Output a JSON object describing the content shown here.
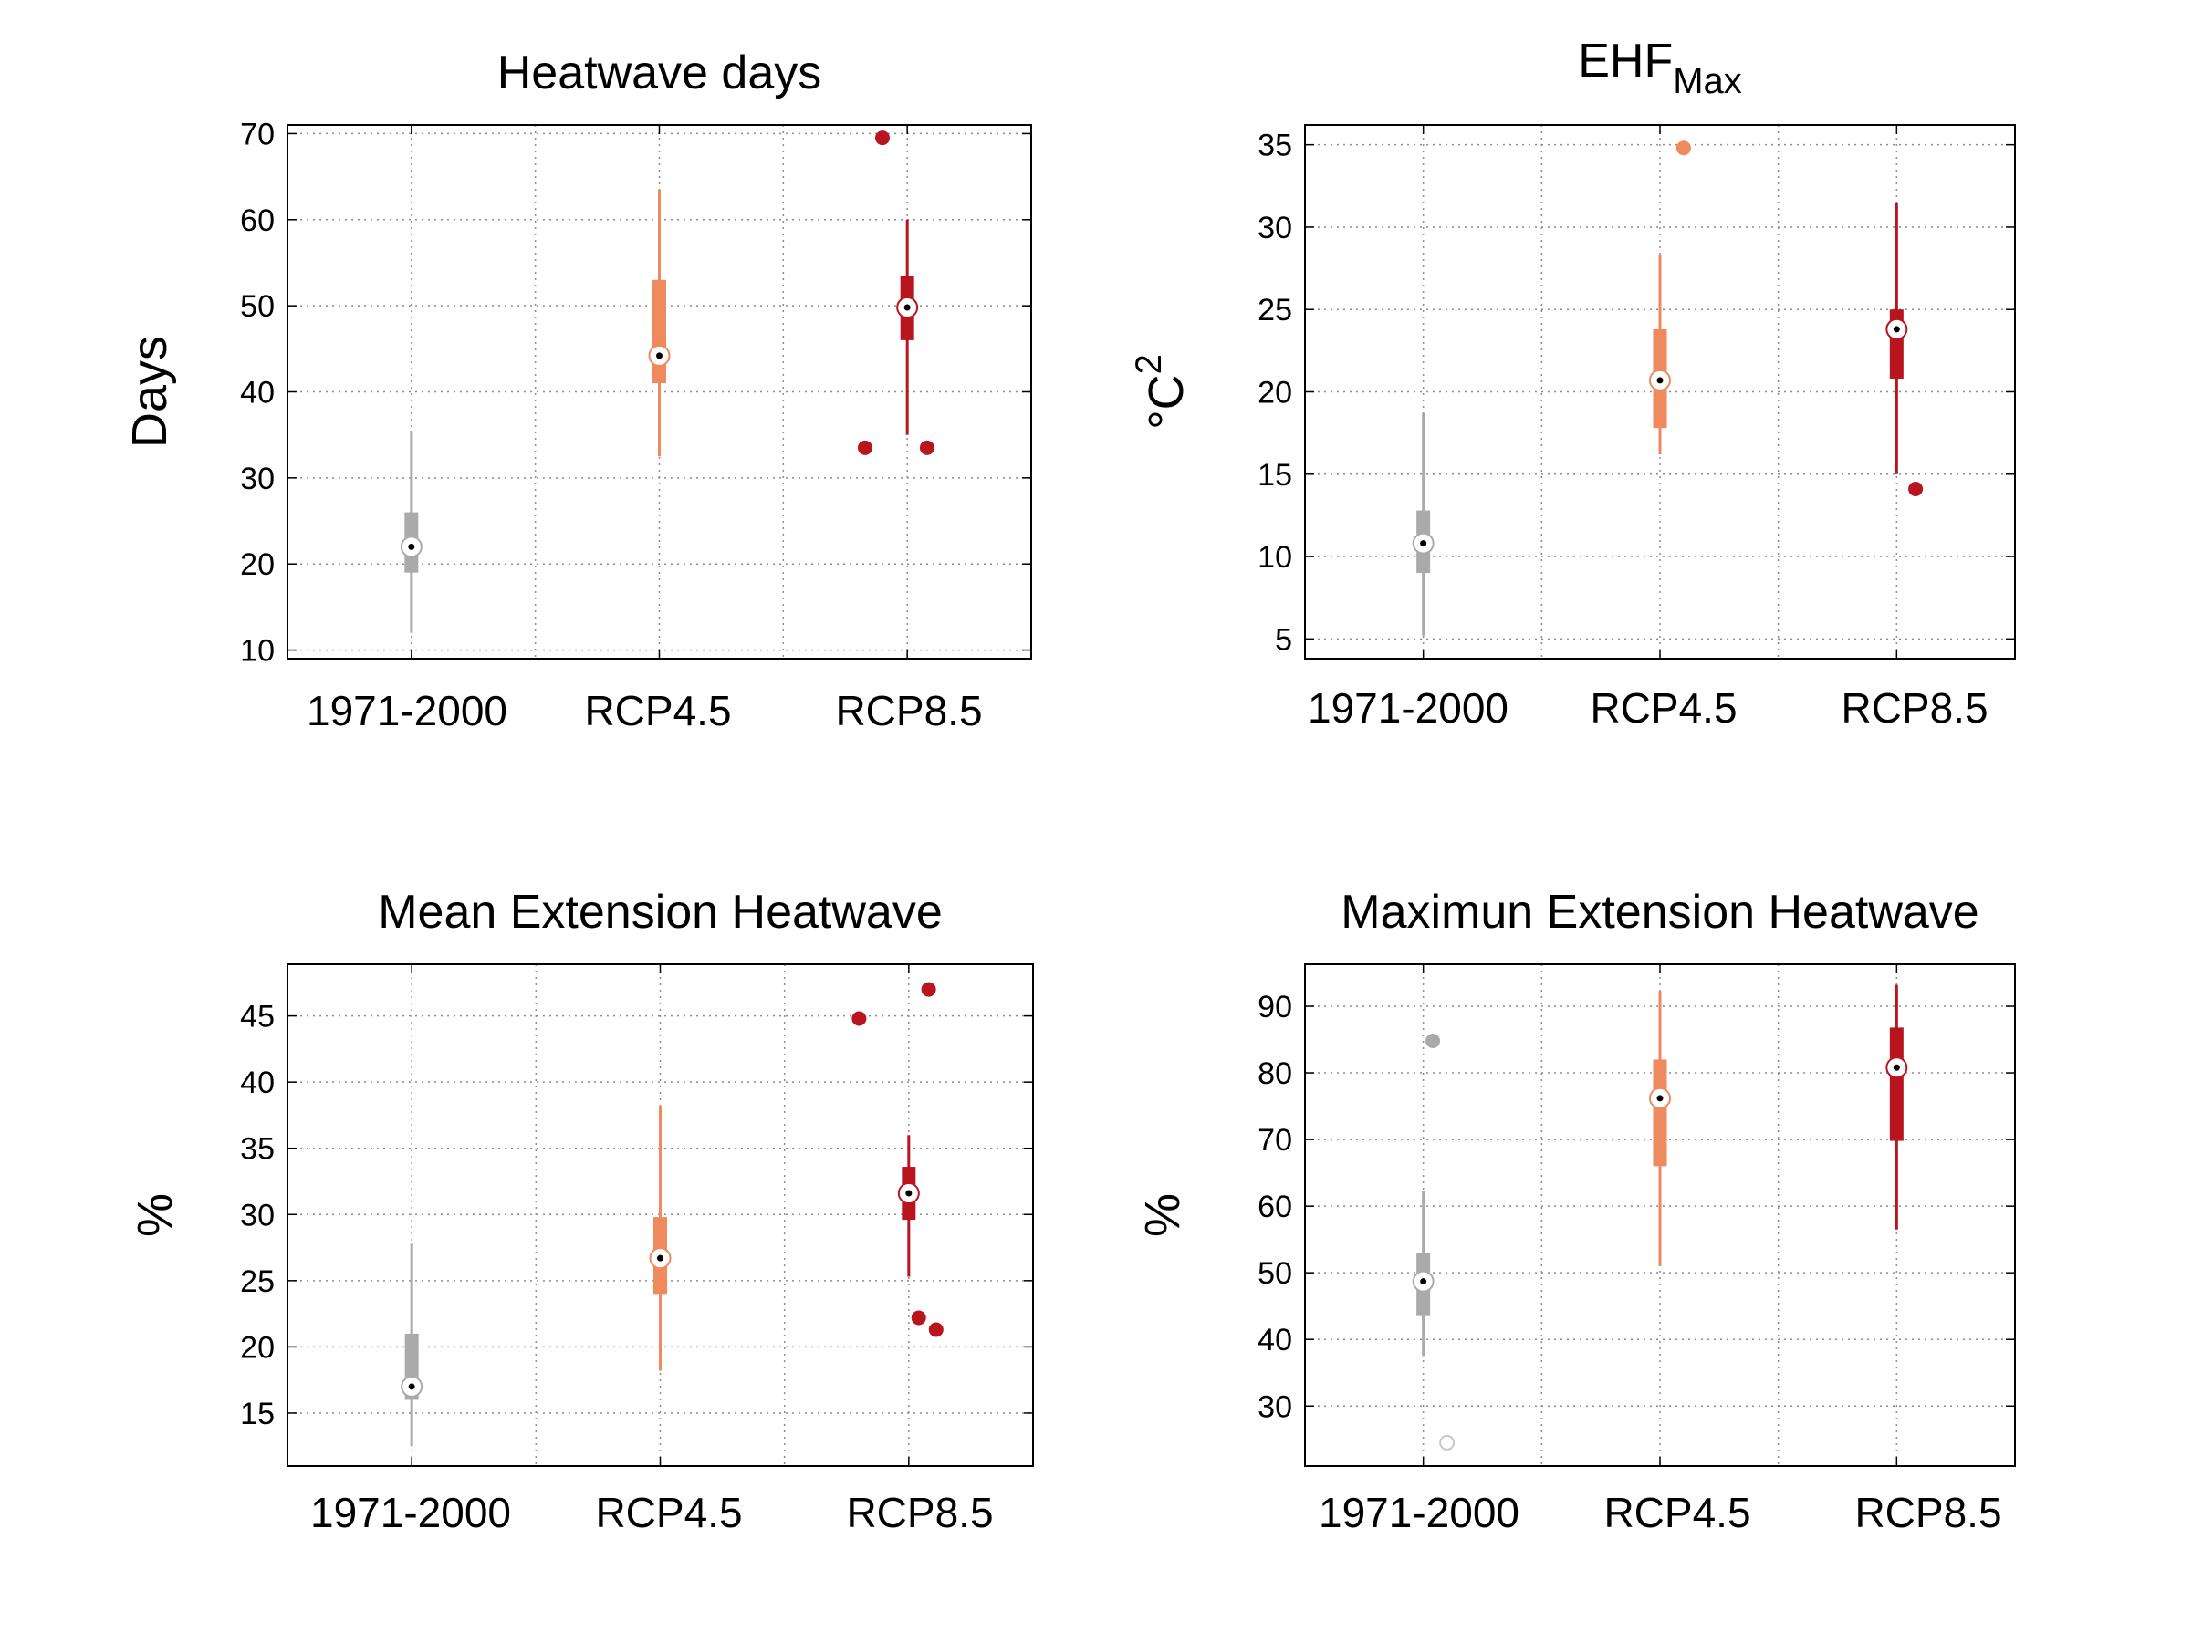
{
  "figure": {
    "colors": {
      "baseline": "#aaaaaa",
      "rcp45": "#ee8a5e",
      "rcp85": "#b8151f"
    }
  },
  "chart_data": [
    {
      "type": "box",
      "title": "Heatwave days",
      "ylabel": "Days",
      "categories": [
        "1971-2000",
        "RCP4.5",
        "RCP8.5"
      ],
      "ylim": [
        9,
        71
      ],
      "yticks": [
        10,
        20,
        30,
        40,
        50,
        60,
        70
      ],
      "xgrid": [
        0.5,
        1.5,
        2.5
      ],
      "boxes": [
        {
          "category": "1971-2000",
          "whisker_low": 12,
          "q1": 19,
          "median": 22,
          "q3": 26,
          "whisker_high": 35.5,
          "outliers": [],
          "color": "#aaaaaa"
        },
        {
          "category": "RCP4.5",
          "whisker_low": 32.5,
          "q1": 41,
          "median": 44.2,
          "q3": 53,
          "whisker_high": 63.5,
          "outliers": [],
          "color": "#ee8a5e"
        },
        {
          "category": "RCP8.5",
          "whisker_low": 35,
          "q1": 46,
          "median": 49.8,
          "q3": 53.5,
          "whisker_high": 60,
          "outliers": [
            [
              1.9,
              69.5
            ],
            [
              1.83,
              33.5
            ],
            [
              2.08,
              33.5
            ]
          ],
          "color": "#b8151f"
        }
      ]
    },
    {
      "type": "box",
      "title": "EHF",
      "title_sub": "Max",
      "ylabel": "°C",
      "ylabel_sup": "2",
      "categories": [
        "1971-2000",
        "RCP4.5",
        "RCP8.5"
      ],
      "ylim": [
        3.8,
        36.2
      ],
      "yticks": [
        5,
        10,
        15,
        20,
        25,
        30,
        35
      ],
      "xgrid": [
        0.5,
        1.5,
        2.5
      ],
      "boxes": [
        {
          "category": "1971-2000",
          "whisker_low": 5.2,
          "q1": 9,
          "median": 10.8,
          "q3": 12.8,
          "whisker_high": 18.7,
          "outliers": [],
          "color": "#aaaaaa"
        },
        {
          "category": "RCP4.5",
          "whisker_low": 16.2,
          "q1": 17.8,
          "median": 20.7,
          "q3": 23.8,
          "whisker_high": 28.3,
          "outliers": [
            [
              1.1,
              34.8
            ]
          ],
          "color": "#ee8a5e"
        },
        {
          "category": "RCP8.5",
          "whisker_low": 15,
          "q1": 20.8,
          "median": 23.8,
          "q3": 25,
          "whisker_high": 31.5,
          "outliers": [
            [
              2.08,
              14.1
            ]
          ],
          "color": "#b8151f"
        }
      ]
    },
    {
      "type": "box",
      "title": "Mean Extension Heatwave",
      "ylabel": "%",
      "categories": [
        "1971-2000",
        "RCP4.5",
        "RCP8.5"
      ],
      "ylim": [
        11,
        48.9
      ],
      "yticks": [
        15,
        20,
        25,
        30,
        35,
        40,
        45
      ],
      "xgrid": [
        0.5,
        1.5,
        2.5
      ],
      "boxes": [
        {
          "category": "1971-2000",
          "whisker_low": 12.5,
          "q1": 16,
          "median": 17,
          "q3": 21,
          "whisker_high": 27.8,
          "outliers": [],
          "color": "#aaaaaa"
        },
        {
          "category": "RCP4.5",
          "whisker_low": 18.2,
          "q1": 24,
          "median": 26.7,
          "q3": 29.8,
          "whisker_high": 38.2,
          "outliers": [],
          "color": "#ee8a5e"
        },
        {
          "category": "RCP8.5",
          "whisker_low": 25.3,
          "q1": 29.6,
          "median": 31.6,
          "q3": 33.6,
          "whisker_high": 36,
          "outliers": [
            [
              1.8,
              44.8
            ],
            [
              2.08,
              47
            ],
            [
              2.04,
              22.2
            ],
            [
              2.11,
              21.3
            ]
          ],
          "color": "#b8151f"
        }
      ]
    },
    {
      "type": "box",
      "title": "Maximun Extension Heatwave",
      "ylabel": "%",
      "categories": [
        "1971-2000",
        "RCP4.5",
        "RCP8.5"
      ],
      "ylim": [
        21,
        96.3
      ],
      "yticks": [
        30,
        40,
        50,
        60,
        70,
        80,
        90
      ],
      "xgrid": [
        0.5,
        1.5,
        2.5
      ],
      "boxes": [
        {
          "category": "1971-2000",
          "whisker_low": 37.5,
          "q1": 43.5,
          "median": 48.7,
          "q3": 53,
          "whisker_high": 62.3,
          "outliers": [
            [
              0.04,
              84.8
            ]
          ],
          "hollow_outliers": [
            [
              0.1,
              24.5
            ]
          ],
          "color": "#aaaaaa"
        },
        {
          "category": "RCP4.5",
          "whisker_low": 51,
          "q1": 66,
          "median": 76.2,
          "q3": 82,
          "whisker_high": 92.3,
          "outliers": [],
          "color": "#ee8a5e"
        },
        {
          "category": "RCP8.5",
          "whisker_low": 56.5,
          "q1": 69.8,
          "median": 80.8,
          "q3": 86.8,
          "whisker_high": 93.2,
          "outliers": [],
          "color": "#b8151f"
        }
      ]
    }
  ]
}
